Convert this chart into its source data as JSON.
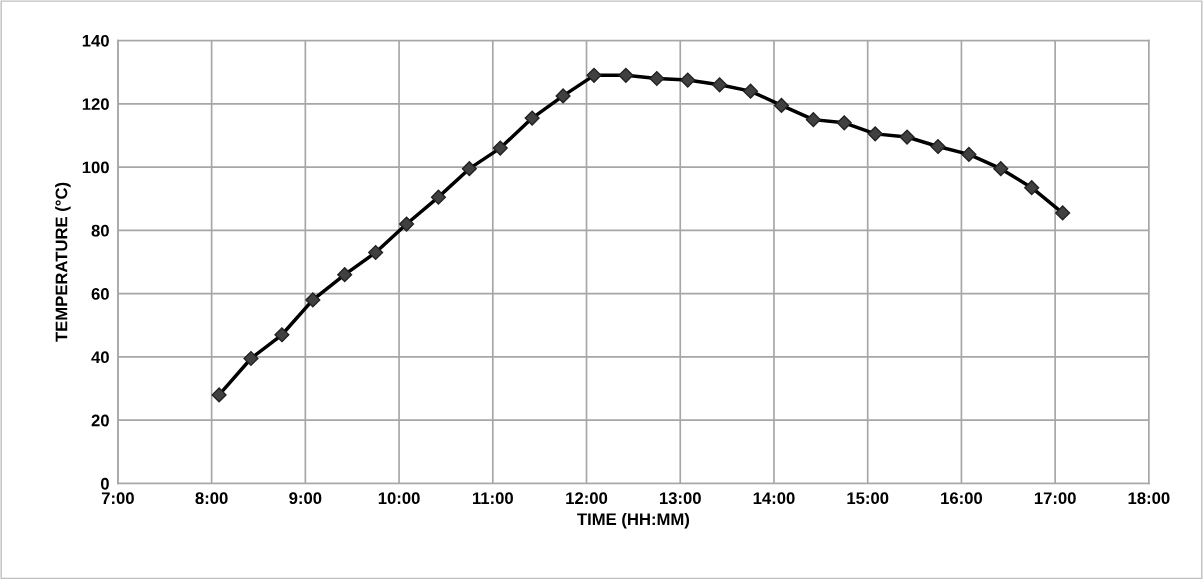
{
  "chart_data": {
    "type": "line",
    "xlabel": "TIME (HH:MM)",
    "ylabel": "TEMPERATURE (°C)",
    "x": [
      8.08,
      8.42,
      8.75,
      9.08,
      9.42,
      9.75,
      10.08,
      10.42,
      10.75,
      11.08,
      11.42,
      11.75,
      12.08,
      12.42,
      12.75,
      13.08,
      13.42,
      13.75,
      14.08,
      14.42,
      14.75,
      15.08,
      15.42,
      15.75,
      16.08,
      16.42,
      16.75,
      17.08
    ],
    "series": [
      {
        "color": "#000000",
        "values": [
          28,
          39.5,
          47,
          58,
          66,
          73,
          82,
          90.5,
          99.5,
          106,
          115.5,
          122.5,
          129,
          129,
          128,
          127.5,
          126,
          124,
          119.5,
          115,
          114,
          110.5,
          109.5,
          106.5,
          104,
          99.5,
          93.5,
          85.5
        ]
      }
    ],
    "xlim": [
      7,
      18
    ],
    "xticks": [
      {
        "value": 7,
        "label": "7:00"
      },
      {
        "value": 8,
        "label": "8:00"
      },
      {
        "value": 9,
        "label": "9:00"
      },
      {
        "value": 10,
        "label": "10:00"
      },
      {
        "value": 11,
        "label": "11:00"
      },
      {
        "value": 12,
        "label": "12:00"
      },
      {
        "value": 13,
        "label": "13:00"
      },
      {
        "value": 14,
        "label": "14:00"
      },
      {
        "value": 15,
        "label": "15:00"
      },
      {
        "value": 16,
        "label": "16:00"
      },
      {
        "value": 17,
        "label": "17:00"
      },
      {
        "value": 18,
        "label": "18:00"
      }
    ],
    "ylim": [
      0,
      140
    ],
    "yticks": [
      0,
      20,
      40,
      60,
      80,
      100,
      120,
      140
    ],
    "grid": true,
    "marker": "diamond",
    "line_style": "solid"
  }
}
